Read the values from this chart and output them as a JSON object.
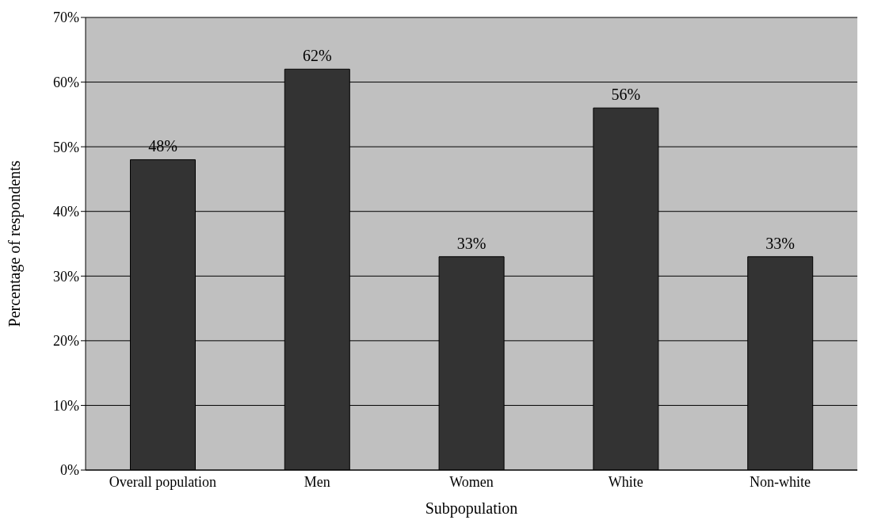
{
  "chart_data": {
    "type": "bar",
    "xlabel": "Subpopulation",
    "ylabel": "Percentage of respondents",
    "categories": [
      "Overall population",
      "Men",
      "Women",
      "White",
      "Non-white"
    ],
    "values": [
      48,
      62,
      33,
      56,
      33
    ],
    "value_labels": [
      "48%",
      "62%",
      "33%",
      "56%",
      "33%"
    ],
    "color": "#333333",
    "ylim": [
      0,
      70
    ],
    "yticks": [
      {
        "value": 0,
        "label": "0%"
      },
      {
        "value": 10,
        "label": "10%"
      },
      {
        "value": 20,
        "label": "20%"
      },
      {
        "value": 30,
        "label": "30%"
      },
      {
        "value": 40,
        "label": "40%"
      },
      {
        "value": 50,
        "label": "50%"
      },
      {
        "value": 60,
        "label": "60%"
      },
      {
        "value": 70,
        "label": "70%"
      }
    ],
    "grid": "y",
    "legend": false
  }
}
